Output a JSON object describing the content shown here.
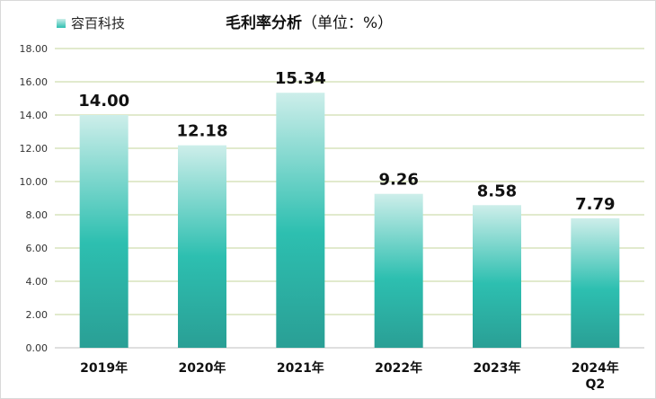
{
  "chart_data": {
    "type": "bar",
    "title": "毛利率分析",
    "subtitle": "（单位：%）",
    "legend": {
      "label": "容百科技",
      "position": "top-left"
    },
    "categories": [
      "2019年",
      "2020年",
      "2021年",
      "2022年",
      "2023年",
      "2024年Q2"
    ],
    "category_lines": [
      [
        "2019年"
      ],
      [
        "2020年"
      ],
      [
        "2021年"
      ],
      [
        "2022年"
      ],
      [
        "2023年"
      ],
      [
        "2024年",
        "Q2"
      ]
    ],
    "series": [
      {
        "name": "容百科技",
        "values": [
          14.0,
          12.18,
          15.34,
          9.26,
          8.58,
          7.79
        ]
      }
    ],
    "value_labels": [
      "14.00",
      "12.18",
      "15.34",
      "9.26",
      "8.58",
      "7.79"
    ],
    "yticks": [
      "0.00",
      "2.00",
      "4.00",
      "6.00",
      "8.00",
      "10.00",
      "12.00",
      "14.00",
      "16.00",
      "18.00"
    ],
    "ylim": [
      0,
      18
    ],
    "grid": true,
    "colors": {
      "bar_top": "#cdeeea",
      "bar_mid": "#2dbfb0",
      "bar_bottom": "#2a9f95",
      "grid": "#c3d69b"
    }
  }
}
